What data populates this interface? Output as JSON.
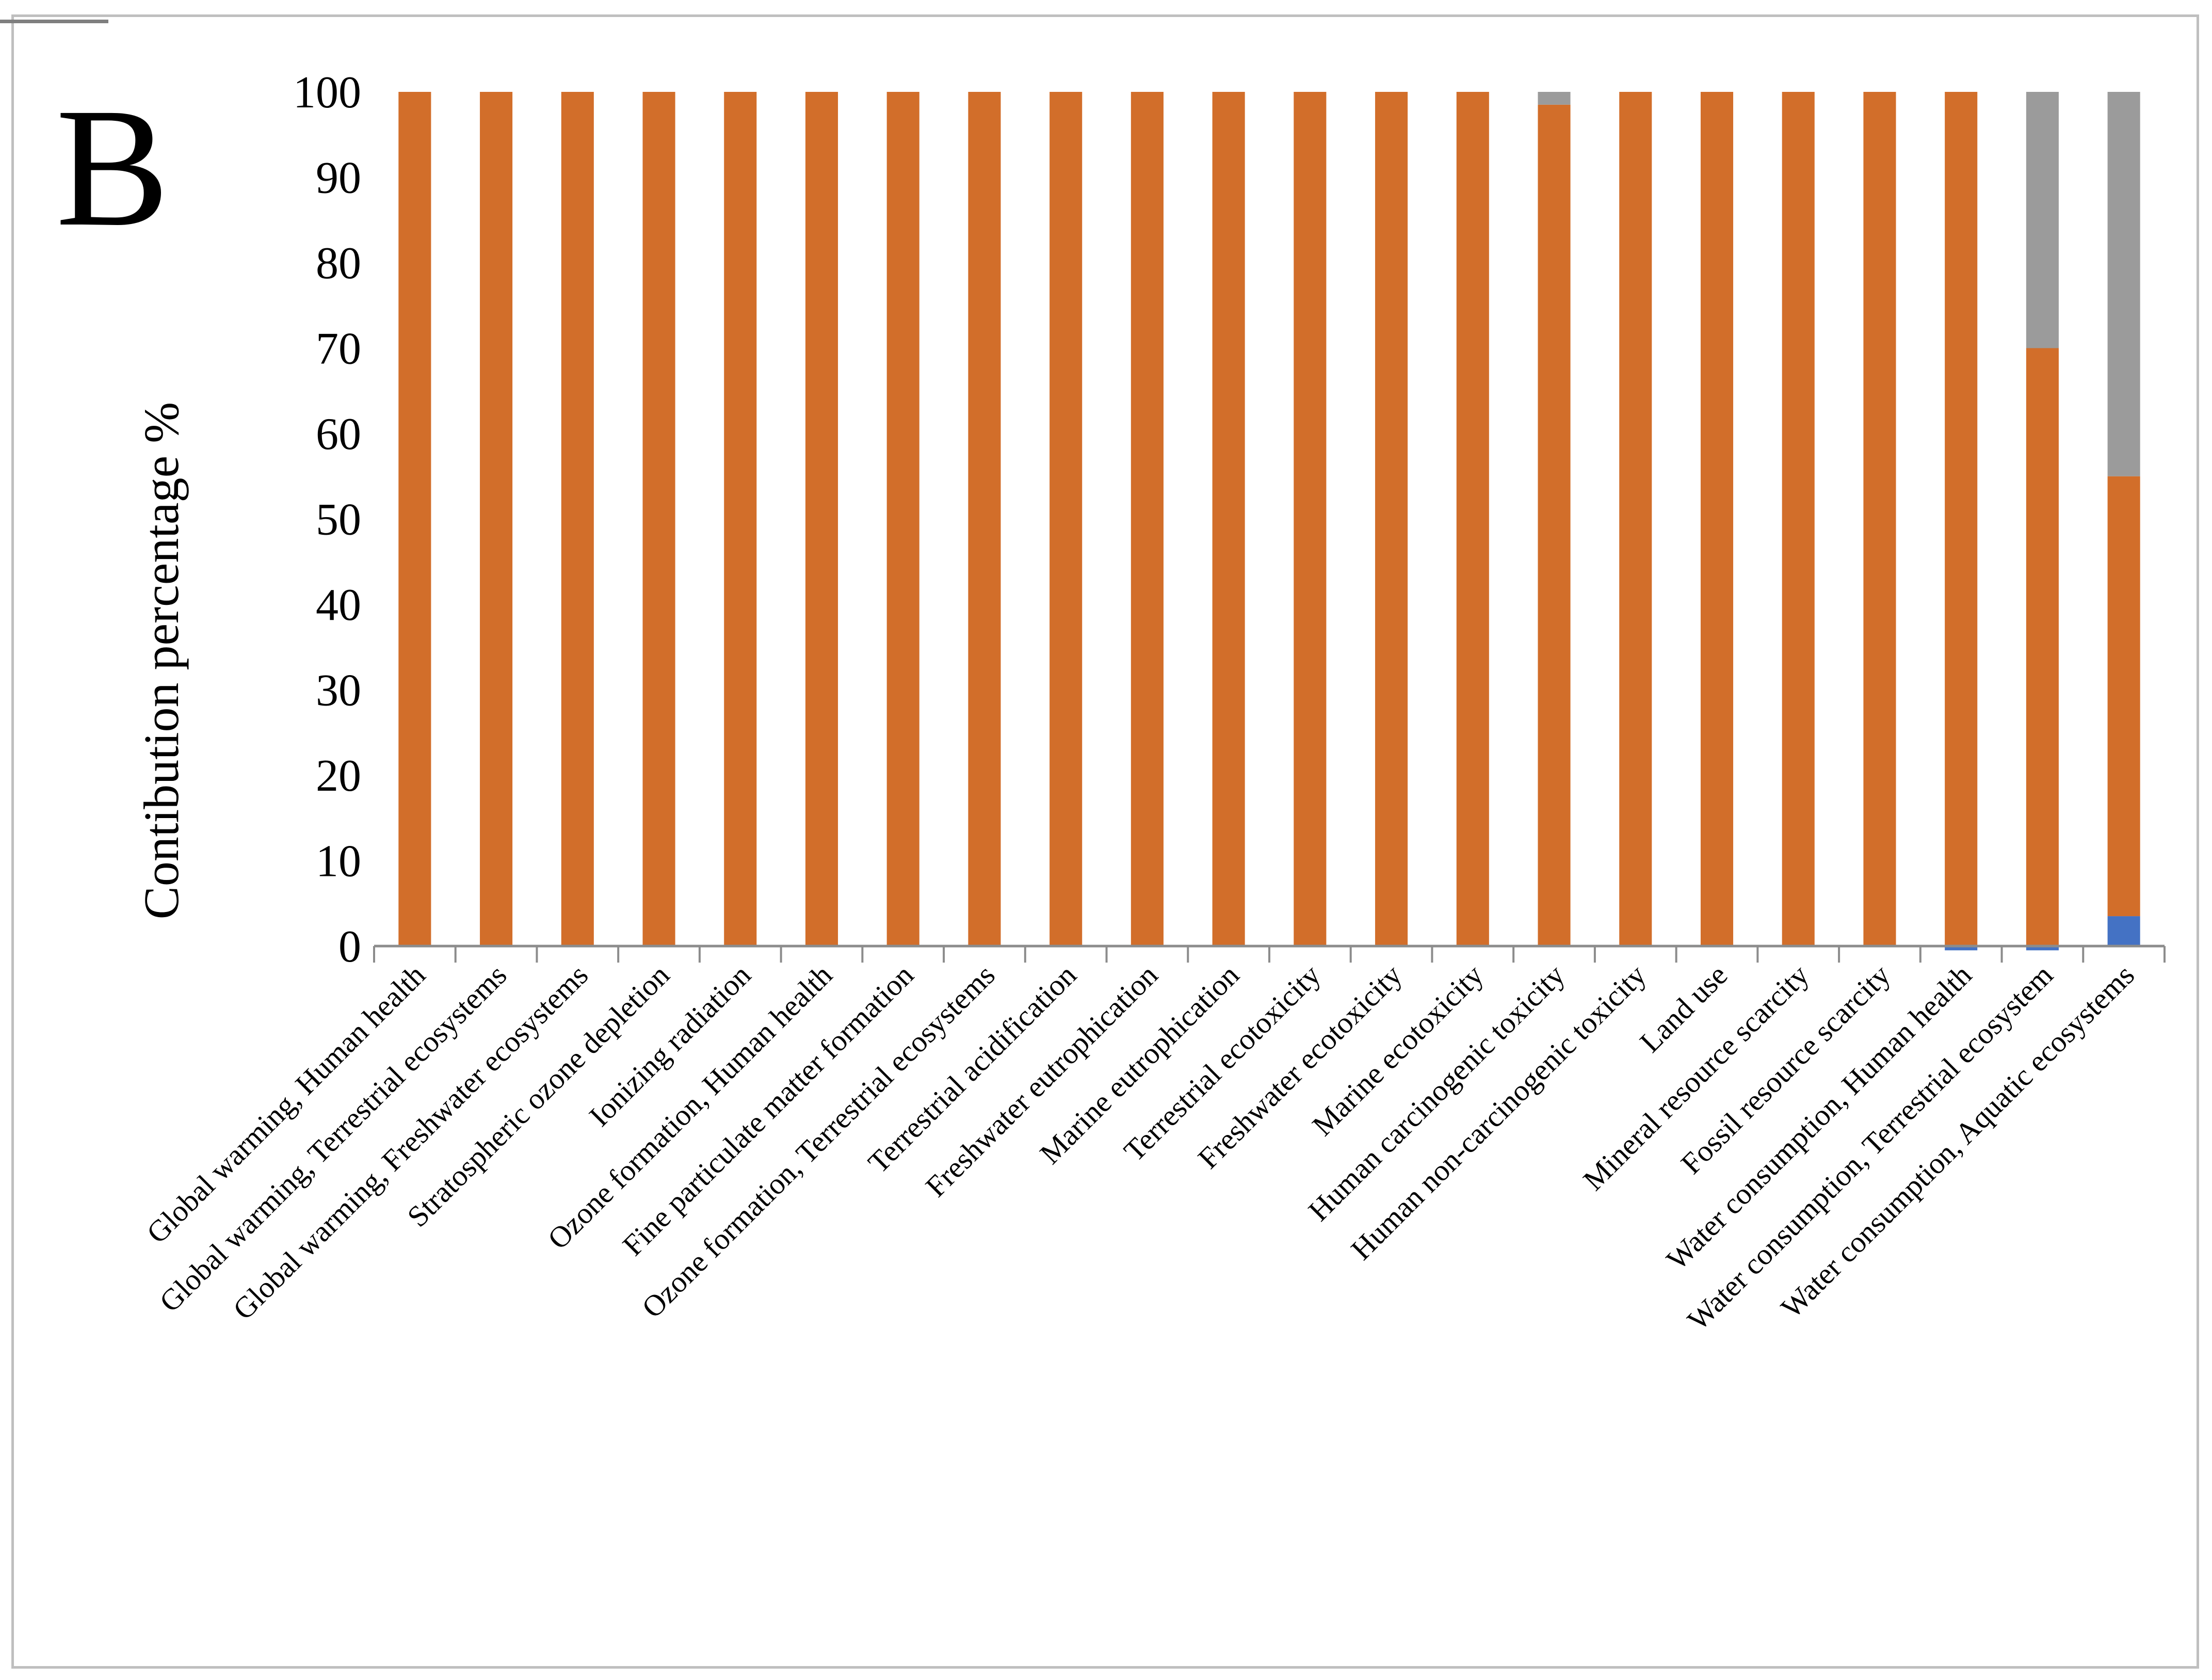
{
  "panel_label": "B",
  "chart_data": {
    "type": "bar",
    "stacked": true,
    "title": "",
    "xlabel": "",
    "ylabel": "Contibution percentage %",
    "ylim": [
      0,
      100
    ],
    "yticks": [
      0,
      10,
      20,
      30,
      40,
      50,
      60,
      70,
      80,
      90,
      100
    ],
    "grid": false,
    "colors": {
      "blue": "#4472c4",
      "orange": "#d26e2a",
      "gray": "#9b9b9b"
    },
    "categories": [
      "Global warming, Human health",
      "Global warming, Terrestrial ecosystems",
      "Global warming, Freshwater ecosystems",
      "Stratospheric ozone depletion",
      "Ionizing radiation",
      "Ozone formation, Human health",
      "Fine particulate matter formation",
      "Ozone formation, Terrestrial ecosystems",
      "Terrestrial acidification",
      "Freshwater eutrophication",
      "Marine eutrophication",
      "Terrestrial ecotoxicity",
      "Freshwater ecotoxicity",
      "Marine ecotoxicity",
      "Human carcinogenic toxicity",
      "Human non-carcinogenic toxicity",
      "Land use",
      "Mineral resource scarcity",
      "Fossil resource scarcity",
      "Water consumption, Human health",
      "Water consumption, Terrestrial ecosystem",
      "Water consumption, Aquatic ecosystems"
    ],
    "series": [
      {
        "name": "blue",
        "color": "#4472c4",
        "values": [
          0,
          0,
          0,
          0,
          0,
          0,
          0,
          0,
          0,
          0,
          0,
          0,
          0,
          0,
          0,
          0,
          0,
          0,
          0,
          -0.5,
          -0.5,
          3.5
        ]
      },
      {
        "name": "orange",
        "color": "#d26e2a",
        "values": [
          100,
          100,
          100,
          100,
          100,
          100,
          100,
          100,
          100,
          100,
          100,
          100,
          100,
          100,
          98.5,
          100,
          100,
          100,
          100,
          100,
          70,
          51.5
        ]
      },
      {
        "name": "gray",
        "color": "#9b9b9b",
        "values": [
          0,
          0,
          0,
          0,
          0,
          0,
          0,
          0,
          0,
          0,
          0,
          0,
          0,
          0,
          1.5,
          0,
          0,
          0,
          0,
          0,
          30,
          45
        ]
      }
    ]
  }
}
